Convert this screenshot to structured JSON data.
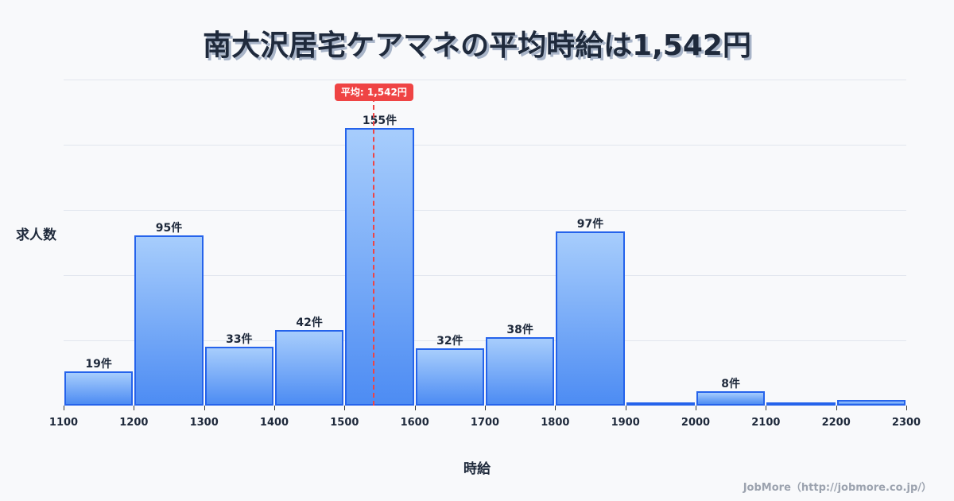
{
  "chart_data": {
    "type": "bar",
    "title": "南大沢居宅ケアマネの平均時給は1,542円",
    "xlabel": "時給",
    "ylabel": "求人数",
    "bins": [
      1100,
      1200,
      1300,
      1400,
      1500,
      1600,
      1700,
      1800,
      1900,
      2000,
      2100,
      2200,
      2300
    ],
    "categories": [
      "1100-1200",
      "1200-1300",
      "1300-1400",
      "1400-1500",
      "1500-1600",
      "1600-1700",
      "1700-1800",
      "1800-1900",
      "1900-2000",
      "2000-2100",
      "2100-2200",
      "2200-2300"
    ],
    "values": [
      19,
      95,
      33,
      42,
      155,
      32,
      38,
      97,
      1,
      8,
      2,
      3
    ],
    "value_labels": [
      "19件",
      "95件",
      "33件",
      "42件",
      "155件",
      "32件",
      "38件",
      "97件",
      "",
      "8件",
      "",
      ""
    ],
    "x_tick_labels": [
      "1100",
      "1200",
      "1300",
      "1400",
      "1500",
      "1600",
      "1700",
      "1800",
      "1900",
      "2000",
      "2100",
      "2200",
      "2300"
    ],
    "xlim": [
      1100,
      2300
    ],
    "ylim": [
      0,
      182
    ],
    "grid": true,
    "mean": 1542,
    "mean_label": "平均: 1,542円",
    "colors": {
      "bar_fill_top": "#a7cdfc",
      "bar_fill_bottom": "#4d8cf3",
      "bar_border": "#2563eb",
      "mean_line": "#ef4444"
    }
  },
  "header": {
    "title": "南大沢居宅ケアマネの平均時給は1,542円"
  },
  "axes": {
    "y_title": "求人数",
    "x_title": "時給"
  },
  "footer": {
    "credit": "JobMore（http://jobmore.co.jp/）"
  }
}
